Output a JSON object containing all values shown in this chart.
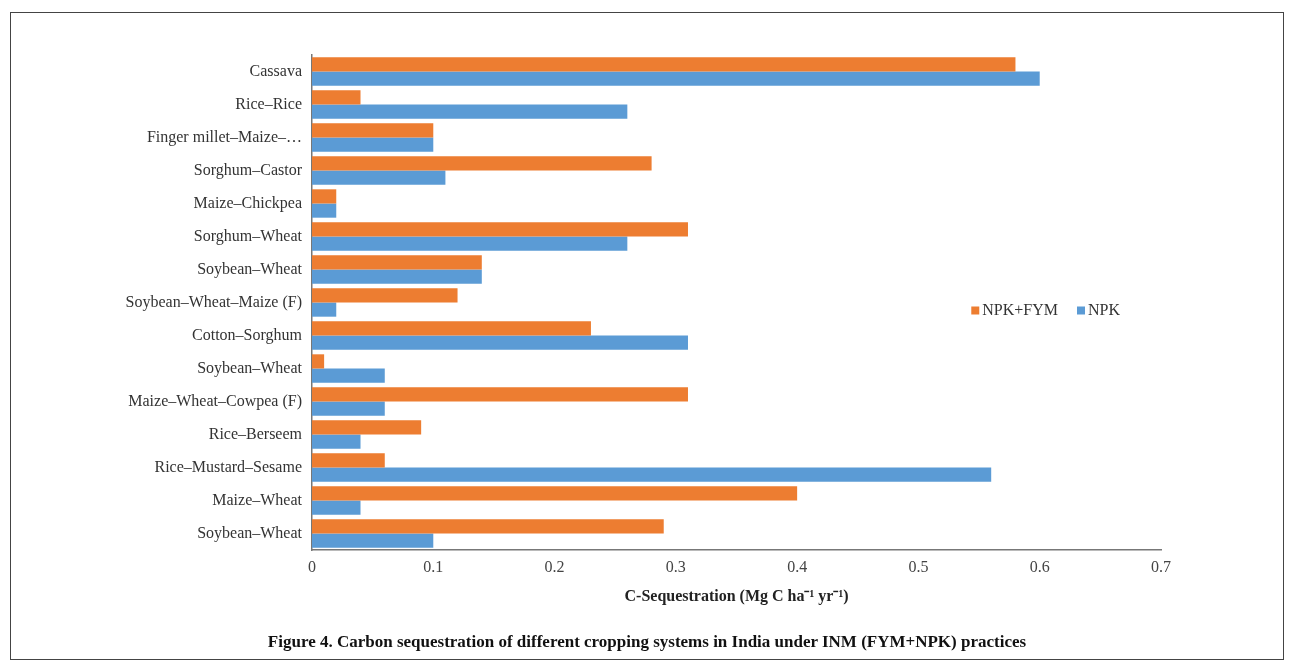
{
  "chart_data": {
    "type": "bar",
    "orientation": "horizontal",
    "title": "Figure 4. Carbon sequestration of different cropping systems in India under INM (FYM+NPK) practices",
    "xlabel": "C-Sequestration (Mg C ha⁻¹ yr⁻¹)",
    "categories": [
      "Cassava",
      "Rice–Rice",
      "Finger millet–Maize–…",
      "Sorghum–Castor",
      "Maize–Chickpea",
      "Sorghum–Wheat",
      "Soybean–Wheat",
      "Soybean–Wheat–Maize (F)",
      "Cotton–Sorghum",
      "Soybean–Wheat",
      "Maize–Wheat–Cowpea (F)",
      "Rice–Berseem",
      "Rice–Mustard–Sesame",
      "Maize–Wheat",
      "Soybean–Wheat"
    ],
    "series": [
      {
        "name": "NPK+FYM",
        "color": "#ed7d31",
        "values": [
          0.58,
          0.04,
          0.1,
          0.28,
          0.02,
          0.31,
          0.14,
          0.12,
          0.23,
          0.01,
          0.31,
          0.09,
          0.06,
          0.4,
          0.29
        ]
      },
      {
        "name": "NPK",
        "color": "#5b9bd5",
        "values": [
          0.6,
          0.26,
          0.1,
          0.11,
          0.02,
          0.26,
          0.14,
          0.02,
          0.31,
          0.06,
          0.06,
          0.04,
          0.56,
          0.04,
          0.1
        ]
      }
    ],
    "xlim": [
      0,
      0.7
    ],
    "xticks": [
      0,
      0.1,
      0.2,
      0.3,
      0.4,
      0.5,
      0.6,
      0.7
    ],
    "grid": false,
    "legend": "right"
  }
}
